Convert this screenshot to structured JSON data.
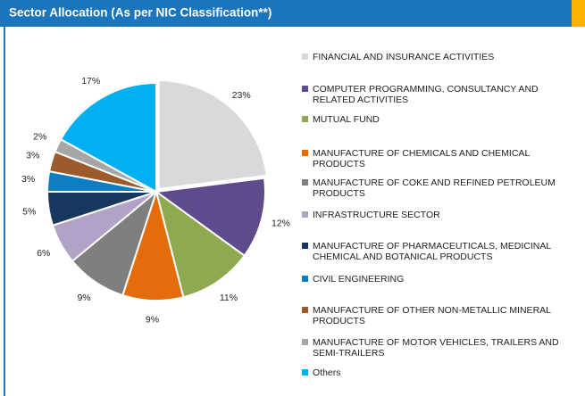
{
  "chart_data": {
    "type": "pie",
    "title": "Sector Allocation (As per NIC Classification**)",
    "categories": [
      "FINANCIAL AND INSURANCE ACTIVITIES",
      "COMPUTER PROGRAMMING, CONSULTANCY AND RELATED ACTIVITIES",
      "MUTUAL FUND",
      "MANUFACTURE OF CHEMICALS AND CHEMICAL PRODUCTS",
      "MANUFACTURE OF COKE AND REFINED PETROLEUM PRODUCTS",
      "INFRASTRUCTURE SECTOR",
      "MANUFACTURE OF PHARMACEUTICALS, MEDICINAL CHEMICAL AND BOTANICAL PRODUCTS",
      "CIVIL ENGINEERING",
      "MANUFACTURE OF OTHER NON-METALLIC MINERAL PRODUCTS",
      "MANUFACTURE OF MOTOR VEHICLES, TRAILERS AND SEMI-TRAILERS",
      "Others"
    ],
    "values": [
      23,
      12,
      11,
      9,
      9,
      6,
      5,
      3,
      3,
      2,
      17
    ],
    "value_labels": [
      "23%",
      "12%",
      "11%",
      "9%",
      "9%",
      "6%",
      "5%",
      "3%",
      "3%",
      "2%",
      "17%"
    ],
    "colors": [
      "#d9d9d9",
      "#5f4b8b",
      "#8faa4e",
      "#e46c0a",
      "#7f7f7f",
      "#b3a2c7",
      "#17375e",
      "#0e7dc2",
      "#9c5b2b",
      "#a6a6a6",
      "#00b0f0"
    ],
    "legend": "right"
  }
}
